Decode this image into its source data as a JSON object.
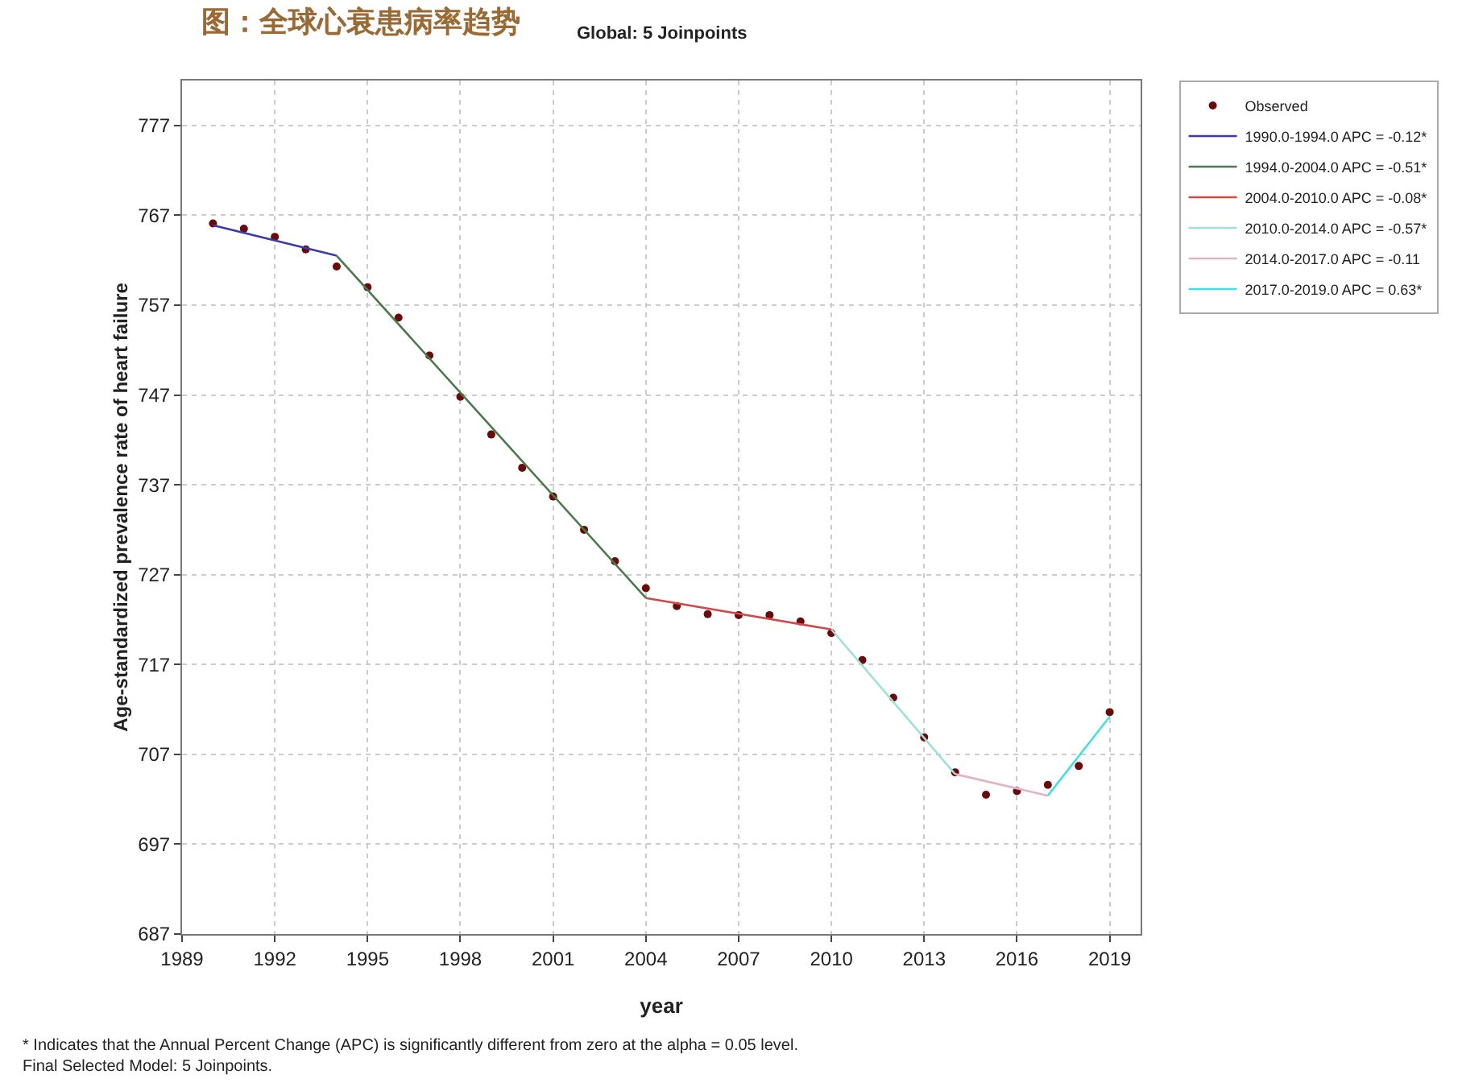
{
  "chart_data": {
    "type": "line",
    "title": "图：全球心衰患病率趋势",
    "subtitle": "Global: 5 Joinpoints",
    "xlabel": "year",
    "ylabel": "Age-standardized prevalence rate of heart failure",
    "xlim": [
      1989,
      2020
    ],
    "xticks": [
      1989,
      1992,
      1995,
      1998,
      2001,
      2004,
      2007,
      2010,
      2013,
      2016,
      2019
    ],
    "ylim": [
      687,
      782
    ],
    "yticks": [
      687,
      697,
      707,
      717,
      727,
      737,
      747,
      757,
      767,
      777
    ],
    "grid": true,
    "legend": "top right",
    "line_style": "solid",
    "series": [
      {
        "name": "Observed",
        "type": "scatter",
        "marker": "circle",
        "color": "#6a0a0a",
        "x": [
          1990,
          1991,
          1992,
          1993,
          1994,
          1995,
          1996,
          1997,
          1998,
          1999,
          2000,
          2001,
          2002,
          2003,
          2004,
          2005,
          2006,
          2007,
          2008,
          2009,
          2010,
          2011,
          2012,
          2013,
          2014,
          2015,
          2016,
          2017,
          2018,
          2019
        ],
        "values": [
          766.1,
          765.5,
          764.6,
          763.2,
          761.3,
          759.0,
          755.6,
          751.4,
          746.8,
          742.6,
          738.9,
          735.7,
          732.0,
          728.5,
          725.5,
          723.5,
          722.6,
          722.5,
          722.5,
          721.8,
          720.5,
          717.5,
          713.3,
          708.9,
          705.0,
          702.5,
          702.9,
          703.6,
          705.7,
          711.7
        ]
      },
      {
        "name": "1990.0-1994.0 APC = -0.12*",
        "color": "#3a3aa8",
        "x": [
          1990,
          1994
        ],
        "values": [
          765.9,
          762.5
        ]
      },
      {
        "name": "1994.0-2004.0 APC = -0.51*",
        "color": "#4a7a4a",
        "x": [
          1994,
          2004
        ],
        "values": [
          762.5,
          724.4
        ]
      },
      {
        "name": "2004.0-2010.0 APC = -0.08*",
        "color": "#d04848",
        "x": [
          2004,
          2010
        ],
        "values": [
          724.4,
          720.9
        ]
      },
      {
        "name": "2010.0-2014.0 APC = -0.57*",
        "color": "#9ee0d6",
        "x": [
          2010,
          2014
        ],
        "values": [
          720.9,
          704.8
        ]
      },
      {
        "name": "2014.0-2017.0 APC = -0.11",
        "color": "#e0b4c4",
        "x": [
          2014,
          2017
        ],
        "values": [
          704.8,
          702.4
        ]
      },
      {
        "name": "2017.0-2019.0 APC = 0.63*",
        "color": "#44e0e0",
        "x": [
          2017,
          2019
        ],
        "values": [
          702.4,
          711.2
        ]
      }
    ],
    "annotations": [
      "* Indicates that the Annual Percent Change (APC) is significantly different from zero at the alpha = 0.05 level.",
      "Final Selected Model: 5 Joinpoints."
    ]
  }
}
